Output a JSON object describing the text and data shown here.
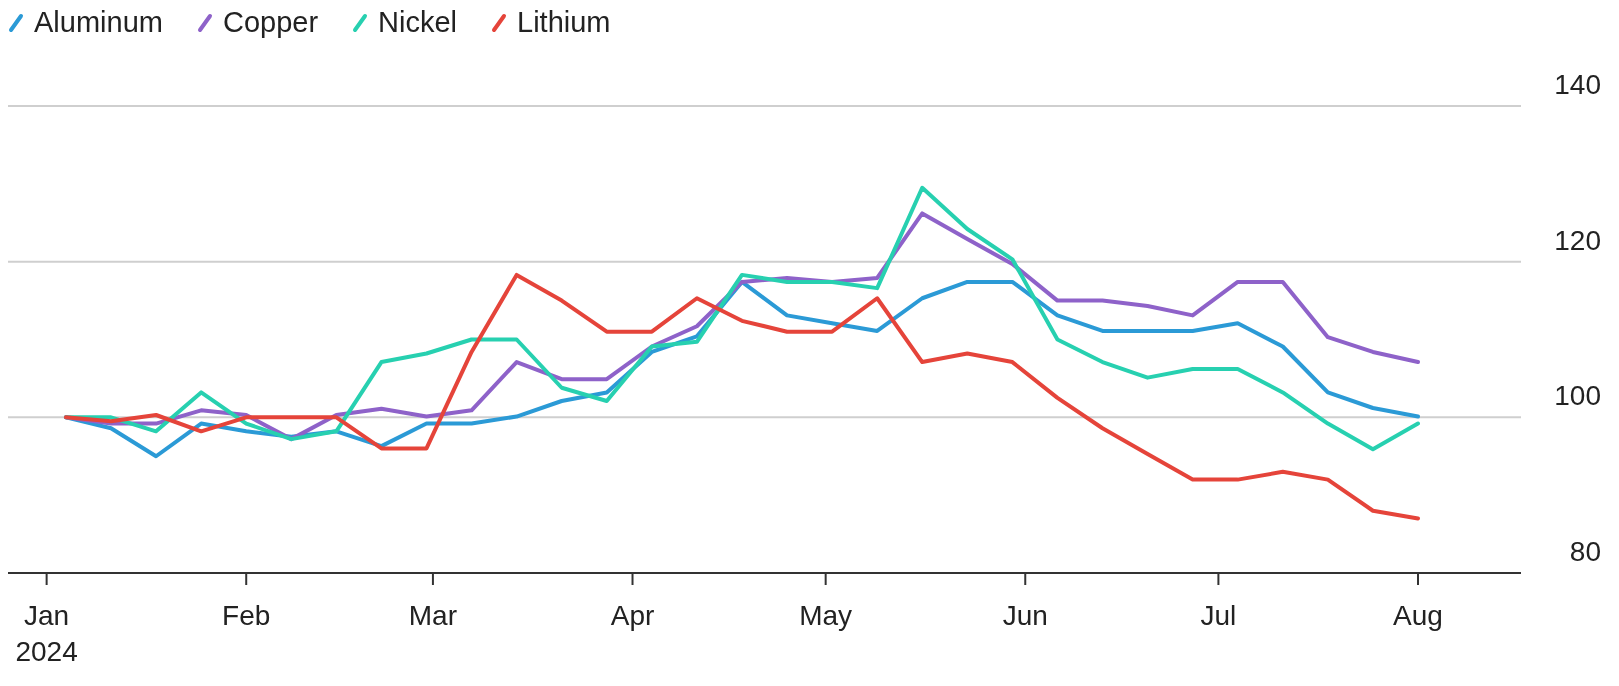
{
  "chart_data": {
    "type": "line",
    "x": [
      "2024-01-04",
      "2024-01-11",
      "2024-01-18",
      "2024-01-25",
      "2024-02-01",
      "2024-02-08",
      "2024-02-15",
      "2024-02-22",
      "2024-02-29",
      "2024-03-07",
      "2024-03-14",
      "2024-03-21",
      "2024-03-28",
      "2024-04-04",
      "2024-04-11",
      "2024-04-18",
      "2024-04-25",
      "2024-05-02",
      "2024-05-09",
      "2024-05-16",
      "2024-05-23",
      "2024-05-30",
      "2024-06-06",
      "2024-06-13",
      "2024-06-20",
      "2024-06-27",
      "2024-07-04",
      "2024-07-11",
      "2024-07-18",
      "2024-07-25",
      "2024-08-01"
    ],
    "series": [
      {
        "name": "Aluminum",
        "color": "#2b9ad6",
        "values": [
          100,
          98.6,
          95,
          99.2,
          98.2,
          97.5,
          98.2,
          96.3,
          99.2,
          99.2,
          100.1,
          102.1,
          103.2,
          108.4,
          110.4,
          117.4,
          113.1,
          112.1,
          111.1,
          115.3,
          117.4,
          117.4,
          113.1,
          111.1,
          111.1,
          111.1,
          112.1,
          109.1,
          103.2,
          101.2,
          100.1
        ]
      },
      {
        "name": "Copper",
        "color": "#8e62c9",
        "values": [
          100,
          99.2,
          99.2,
          100.9,
          100.3,
          97.2,
          100.3,
          101.1,
          100.1,
          100.9,
          107.1,
          104.9,
          104.9,
          109.1,
          111.7,
          117.4,
          117.9,
          117.4,
          117.9,
          126.2,
          122.9,
          119.7,
          115,
          115,
          114.3,
          113.1,
          117.4,
          117.4,
          110.3,
          108.4,
          107.1
        ]
      },
      {
        "name": "Nickel",
        "color": "#27d0b0",
        "values": [
          100,
          100,
          98.2,
          103.2,
          99.2,
          97.2,
          98.2,
          107.1,
          108.2,
          110,
          110,
          103.8,
          102.1,
          109.1,
          109.7,
          118.3,
          117.4,
          117.4,
          116.6,
          129.5,
          124.2,
          120.3,
          110,
          107.1,
          105.1,
          106.2,
          106.2,
          103.2,
          99.2,
          95.9,
          99.2
        ]
      },
      {
        "name": "Lithium",
        "color": "#e5443a",
        "values": [
          100,
          99.5,
          100.3,
          98.2,
          100,
          100,
          100,
          96,
          96,
          108.4,
          118.3,
          115,
          111,
          111,
          115.3,
          112.4,
          111,
          111,
          115.3,
          107.1,
          108.2,
          107.1,
          102.5,
          98.6,
          95.3,
          92,
          92,
          93,
          92,
          88,
          87
        ]
      }
    ],
    "xlim": [
      "2023-12-26",
      "2024-08-17"
    ],
    "xticks": [
      {
        "value": "2024-01-01",
        "label": "Jan\n2024"
      },
      {
        "value": "2024-02-01",
        "label": "Feb"
      },
      {
        "value": "2024-03-01",
        "label": "Mar"
      },
      {
        "value": "2024-04-01",
        "label": "Apr"
      },
      {
        "value": "2024-05-01",
        "label": "May"
      },
      {
        "value": "2024-06-01",
        "label": "Jun"
      },
      {
        "value": "2024-07-01",
        "label": "Jul"
      },
      {
        "value": "2024-08-01",
        "label": "Aug"
      }
    ],
    "ylim": [
      80,
      140
    ],
    "yticks": [
      80,
      100,
      120,
      140
    ],
    "grid": "y",
    "legend": "top left",
    "marker": "none",
    "line_style": "solid"
  }
}
